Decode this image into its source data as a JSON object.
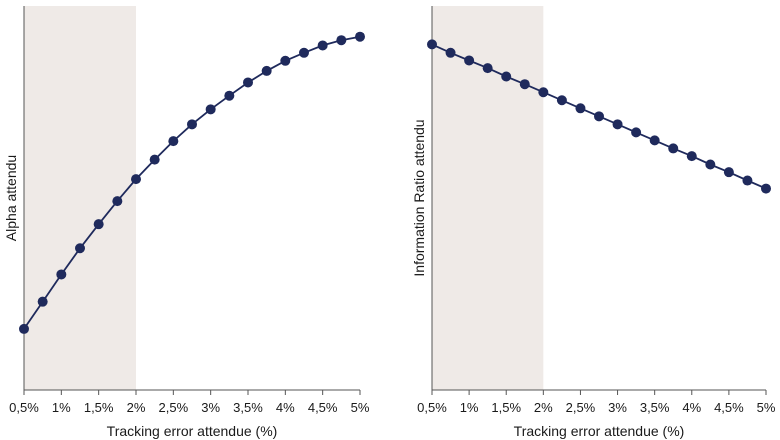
{
  "colors": {
    "series": "#1f2a5c",
    "shade": "#efeae7",
    "axis": "#555555",
    "text": "#1a1a1a"
  },
  "chart_data": [
    {
      "type": "line",
      "title": "",
      "xlabel": "Tracking error attendue (%)",
      "ylabel": "Alpha attendu",
      "x": [
        0.5,
        0.75,
        1,
        1.25,
        1.5,
        1.75,
        2,
        2.25,
        2.5,
        2.75,
        3,
        3.25,
        3.5,
        3.75,
        4,
        4.25,
        4.5,
        4.75,
        5
      ],
      "series": [
        {
          "values": [
            0.175,
            0.253,
            0.331,
            0.406,
            0.475,
            0.541,
            0.604,
            0.66,
            0.713,
            0.761,
            0.804,
            0.843,
            0.881,
            0.914,
            0.943,
            0.966,
            0.987,
            1.002,
            1.012
          ]
        }
      ],
      "xlim": [
        0.5,
        5
      ],
      "ylim": [
        0,
        1.1
      ],
      "xticks": [
        0.5,
        1,
        1.5,
        2,
        2.5,
        3,
        3.5,
        4,
        4.5,
        5
      ],
      "xtick_labels": [
        "0,5%",
        "1%",
        "1,5%",
        "2%",
        "2,5%",
        "3%",
        "3,5%",
        "4%",
        "4,5%",
        "5%"
      ],
      "shaded_region_x": [
        0.5,
        2
      ],
      "grid": false,
      "y_tick_labels_shown": false
    },
    {
      "type": "line",
      "title": "",
      "xlabel": "Tracking error attendue (%)",
      "ylabel": "Information Ratio attendu",
      "x": [
        0.5,
        0.75,
        1,
        1.25,
        1.5,
        1.75,
        2,
        2.25,
        2.5,
        2.75,
        3,
        3.25,
        3.5,
        3.75,
        4,
        4.25,
        4.5,
        4.75,
        5
      ],
      "series": [
        {
          "values": [
            0.99,
            0.966,
            0.944,
            0.922,
            0.898,
            0.876,
            0.853,
            0.83,
            0.807,
            0.784,
            0.761,
            0.738,
            0.715,
            0.692,
            0.67,
            0.646,
            0.624,
            0.6,
            0.577
          ]
        }
      ],
      "xlim": [
        0.5,
        5
      ],
      "ylim": [
        0,
        1.1
      ],
      "xticks": [
        0.5,
        1,
        1.5,
        2,
        2.5,
        3,
        3.5,
        4,
        4.5,
        5
      ],
      "xtick_labels": [
        "0,5%",
        "1%",
        "1,5%",
        "2%",
        "2,5%",
        "3%",
        "3,5%",
        "4%",
        "4,5%",
        "5%"
      ],
      "shaded_region_x": [
        0.5,
        2
      ],
      "grid": false,
      "y_tick_labels_shown": false
    }
  ]
}
